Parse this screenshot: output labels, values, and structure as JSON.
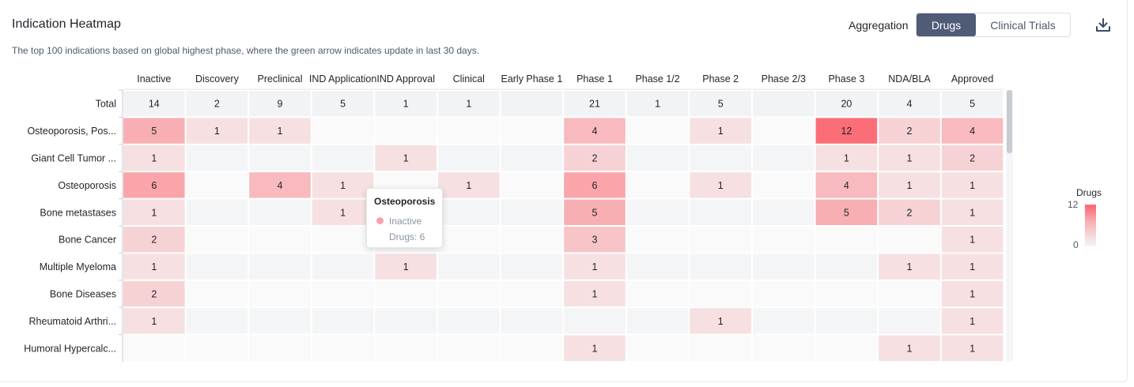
{
  "header": {
    "title": "Indication Heatmap",
    "subtitle": "The top 100 indications based on global highest phase, where the green arrow indicates update in last 30 days.",
    "aggregation_label": "Aggregation",
    "aggregation_options": [
      "Drugs",
      "Clinical Trials"
    ],
    "aggregation_selected": "Drugs"
  },
  "icons": {
    "download": "download-icon"
  },
  "chart_data": {
    "type": "heatmap",
    "columns": [
      "Inactive",
      "Discovery",
      "Preclinical",
      "IND Application",
      "IND Approval",
      "Clinical",
      "Early Phase 1",
      "Phase 1",
      "Phase 1/2",
      "Phase 2",
      "Phase 2/3",
      "Phase 3",
      "NDA/BLA",
      "Approved"
    ],
    "rows": [
      "Total",
      "Osteoporosis, Pos...",
      "Giant Cell Tumor ...",
      "Osteoporosis",
      "Bone metastases",
      "Bone Cancer",
      "Multiple Myeloma",
      "Bone Diseases",
      "Rheumatoid Arthri...",
      "Humoral Hypercalc..."
    ],
    "values": [
      [
        14,
        2,
        9,
        5,
        1,
        1,
        null,
        21,
        1,
        5,
        null,
        20,
        4,
        5
      ],
      [
        5,
        1,
        1,
        null,
        null,
        null,
        null,
        4,
        null,
        1,
        null,
        12,
        2,
        4
      ],
      [
        1,
        null,
        null,
        null,
        1,
        null,
        null,
        2,
        null,
        null,
        null,
        1,
        1,
        2
      ],
      [
        6,
        null,
        4,
        1,
        null,
        1,
        null,
        6,
        null,
        1,
        null,
        4,
        1,
        1
      ],
      [
        1,
        null,
        null,
        1,
        null,
        null,
        null,
        5,
        null,
        null,
        null,
        5,
        2,
        1
      ],
      [
        2,
        null,
        null,
        null,
        null,
        null,
        null,
        3,
        null,
        null,
        null,
        null,
        null,
        1
      ],
      [
        1,
        null,
        null,
        null,
        1,
        null,
        null,
        1,
        null,
        null,
        null,
        null,
        1,
        1
      ],
      [
        2,
        null,
        null,
        null,
        null,
        null,
        null,
        1,
        null,
        null,
        null,
        null,
        null,
        1
      ],
      [
        1,
        null,
        null,
        null,
        null,
        null,
        null,
        null,
        null,
        1,
        null,
        null,
        null,
        1
      ],
      [
        null,
        null,
        null,
        null,
        null,
        null,
        null,
        1,
        null,
        null,
        null,
        null,
        1,
        1
      ]
    ],
    "color_scale": {
      "min": 0,
      "max": 12,
      "min_color": "#f5f5f5",
      "max_color": "#fb6e77",
      "total_row_color": "#f2f3f5"
    },
    "legend": {
      "title": "Drugs",
      "max_label": "12",
      "min_label": "0",
      "placement": "right"
    }
  },
  "tooltip": {
    "title": "Osteoporosis",
    "series": "Inactive",
    "value_text": "Drugs: 6",
    "dot_color": "#f7a3a8"
  }
}
